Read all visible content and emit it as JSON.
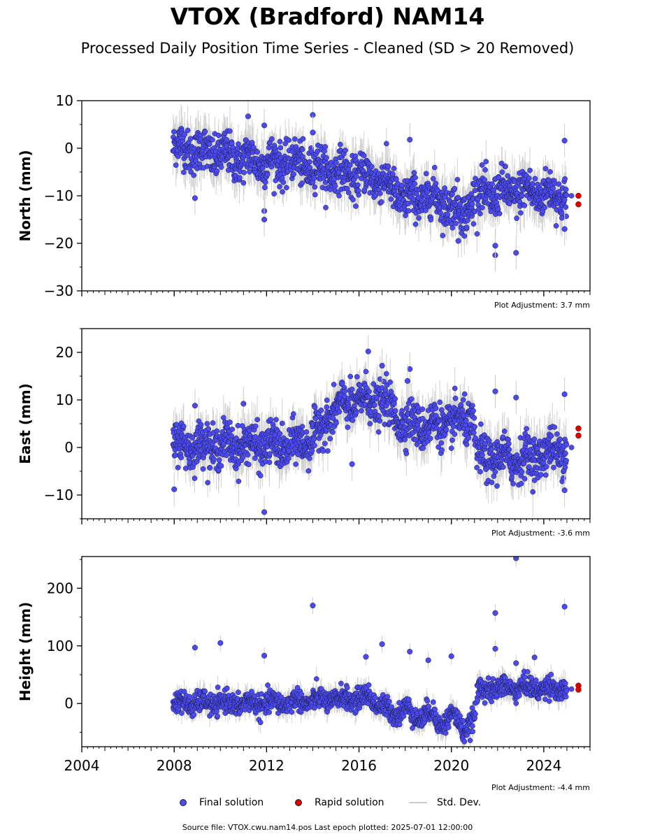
{
  "title": "VTOX (Bradford) NAM14",
  "subtitle": "Processed Daily Position Time Series - Cleaned (SD > 20 Removed)",
  "footer": "Source file: VTOX.cwu.nam14.pos  Last epoch plotted: 2025-07-01 12:00:00",
  "legend": {
    "final": "Final solution",
    "rapid": "Rapid solution",
    "std": "Std. Dev."
  },
  "colors": {
    "final": "#4a4af0",
    "rapid": "#e00000",
    "std": "#cccccc"
  },
  "chart_data": [
    {
      "type": "scatter",
      "ylabel": "North (mm)",
      "ylim": [
        -30,
        10
      ],
      "yticks": [
        10,
        0,
        -10,
        -20,
        -30
      ],
      "yticklabels": [
        "10",
        "0",
        "−10",
        "−20",
        "−30"
      ],
      "xlim": [
        2004,
        2026
      ],
      "adjustment": "Plot Adjustment: 3.7 mm",
      "trend": [
        [
          2008.0,
          0.5
        ],
        [
          2010.0,
          -1.5
        ],
        [
          2012.0,
          -3
        ],
        [
          2013.0,
          -3
        ],
        [
          2015.0,
          -5
        ],
        [
          2017.0,
          -6.5
        ],
        [
          2018.0,
          -11
        ],
        [
          2019.0,
          -10
        ],
        [
          2020.0,
          -12
        ],
        [
          2020.5,
          -14
        ],
        [
          2021.0,
          -10
        ],
        [
          2023.0,
          -9
        ],
        [
          2025.0,
          -10
        ]
      ],
      "noise": 2.2,
      "outliers": [
        [
          2014.0,
          7
        ],
        [
          2014.0,
          3.3
        ],
        [
          2011.2,
          6.7
        ],
        [
          2011.9,
          4.8
        ],
        [
          2011.9,
          -13.2
        ],
        [
          2011.9,
          -15
        ],
        [
          2018.2,
          1.8
        ],
        [
          2021.9,
          -22.5
        ],
        [
          2021.9,
          -20.5
        ],
        [
          2022.8,
          -22
        ],
        [
          2024.9,
          1.6
        ],
        [
          2024.9,
          -17
        ],
        [
          2008.9,
          -10.5
        ],
        [
          2020.3,
          -19.5
        ]
      ],
      "rapid": [
        [
          2025.5,
          -10
        ],
        [
          2025.5,
          -11.8
        ]
      ]
    },
    {
      "type": "scatter",
      "ylabel": "East (mm)",
      "ylim": [
        -15,
        25
      ],
      "yticks": [
        20,
        10,
        0,
        -10
      ],
      "yticklabels": [
        "20",
        "10",
        "0",
        "−10"
      ],
      "xlim": [
        2004,
        2026
      ],
      "adjustment": "Plot Adjustment: -3.6 mm",
      "trend": [
        [
          2008.0,
          0.5
        ],
        [
          2010.0,
          0.5
        ],
        [
          2012.0,
          0.5
        ],
        [
          2013.0,
          0
        ],
        [
          2014.0,
          2
        ],
        [
          2015.0,
          8
        ],
        [
          2016.0,
          10
        ],
        [
          2017.0,
          9.5
        ],
        [
          2018.0,
          5
        ],
        [
          2019.0,
          4.5
        ],
        [
          2020.0,
          5
        ],
        [
          2020.9,
          6
        ],
        [
          2021.1,
          -2
        ],
        [
          2023.0,
          -2.5
        ],
        [
          2025.0,
          0
        ]
      ],
      "noise": 2.2,
      "outliers": [
        [
          2016.4,
          20.2
        ],
        [
          2017.0,
          17.2
        ],
        [
          2018.2,
          16.5
        ],
        [
          2018.1,
          14
        ],
        [
          2011.9,
          -13.6
        ],
        [
          2021.9,
          11.8
        ],
        [
          2022.8,
          10.5
        ],
        [
          2024.9,
          11.2
        ],
        [
          2024.9,
          -9
        ],
        [
          2008.0,
          -8.8
        ],
        [
          2011.0,
          9.2
        ],
        [
          2008.9,
          8.8
        ],
        [
          2015.7,
          -3.5
        ]
      ],
      "rapid": [
        [
          2025.5,
          4
        ],
        [
          2025.5,
          2.5
        ]
      ]
    },
    {
      "type": "scatter",
      "ylabel": "Height (mm)",
      "ylim": [
        -75,
        255
      ],
      "yticks": [
        200,
        100,
        0
      ],
      "yticklabels": [
        "200",
        "100",
        "0"
      ],
      "xlim": [
        2004,
        2026
      ],
      "xticks": [
        2004,
        2008,
        2012,
        2016,
        2020,
        2024
      ],
      "xticklabels": [
        "2004",
        "2008",
        "2012",
        "2016",
        "2020",
        "2024"
      ],
      "adjustment": "Plot Adjustment: -4.4 mm",
      "trend": [
        [
          2008.0,
          0
        ],
        [
          2012.0,
          0
        ],
        [
          2014.0,
          5
        ],
        [
          2016.5,
          10
        ],
        [
          2017.5,
          -20
        ],
        [
          2018.0,
          -5
        ],
        [
          2018.5,
          -30
        ],
        [
          2019.0,
          -10
        ],
        [
          2019.5,
          -40
        ],
        [
          2020.0,
          -15
        ],
        [
          2020.5,
          -50
        ],
        [
          2021.0,
          -20
        ],
        [
          2021.2,
          25
        ],
        [
          2023.0,
          28
        ],
        [
          2025.0,
          25
        ]
      ],
      "noise": 9,
      "outliers": [
        [
          2022.8,
          252
        ],
        [
          2014.0,
          170
        ],
        [
          2024.9,
          168
        ],
        [
          2021.9,
          157
        ],
        [
          2017.0,
          103
        ],
        [
          2010.0,
          105
        ],
        [
          2008.9,
          97
        ],
        [
          2011.9,
          83
        ],
        [
          2016.3,
          81
        ],
        [
          2021.9,
          95
        ],
        [
          2022.8,
          70
        ],
        [
          2023.6,
          80
        ],
        [
          2020.0,
          82
        ],
        [
          2018.2,
          90
        ],
        [
          2019.0,
          75
        ]
      ],
      "rapid": [
        [
          2025.5,
          31
        ],
        [
          2025.5,
          24
        ]
      ]
    }
  ]
}
